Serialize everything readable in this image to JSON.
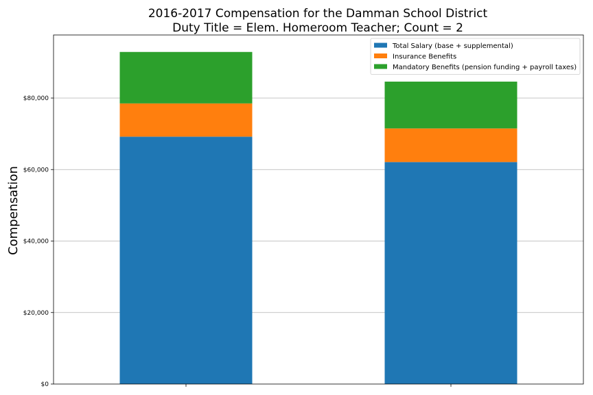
{
  "chart_data": {
    "type": "bar",
    "stacked": true,
    "title_line1": "2016-2017 Compensation for the Damman School District",
    "title_line2": "Duty Title = Elem. Homeroom Teacher; Count = 2",
    "xlabel": "",
    "ylabel": "Compensation",
    "categories": [
      "",
      ""
    ],
    "ylim": [
      0,
      97650
    ],
    "yticks": [
      0,
      20000,
      40000,
      60000,
      80000
    ],
    "ytick_labels": [
      "$0",
      "$20,000",
      "$40,000",
      "$60,000",
      "$80,000"
    ],
    "grid": "y",
    "legend_position": "top-right",
    "series": [
      {
        "name": "Total Salary (base + supplemental)",
        "color": "#1f77b4",
        "values": [
          69200,
          62100
        ]
      },
      {
        "name": "Insurance Benefits",
        "color": "#ff7f0e",
        "values": [
          9300,
          9400
        ]
      },
      {
        "name": "Mandatory Benefits (pension funding + payroll taxes)",
        "color": "#2ca02c",
        "values": [
          14400,
          13100
        ]
      }
    ]
  }
}
